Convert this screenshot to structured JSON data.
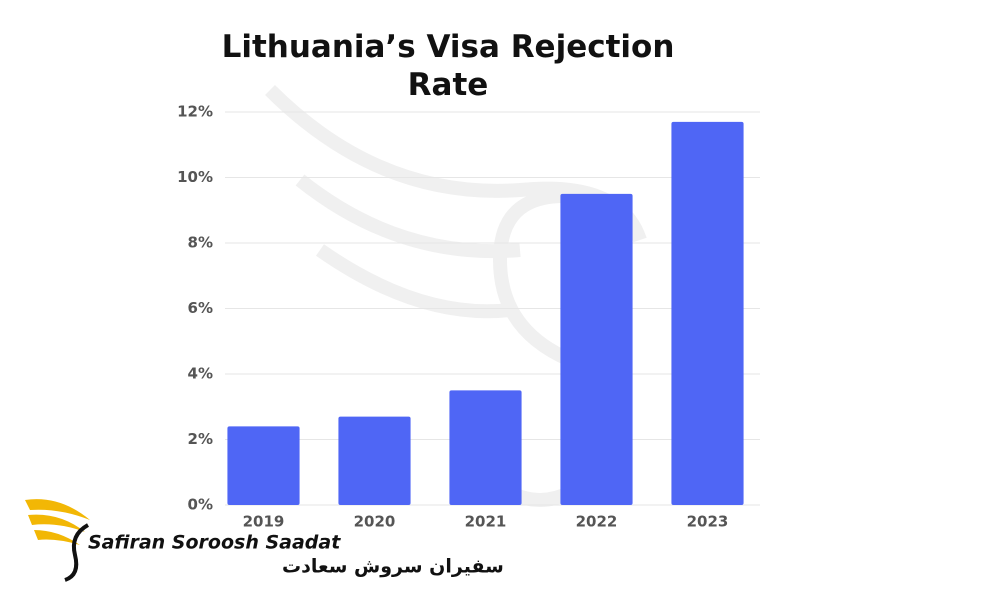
{
  "chart_data": {
    "type": "bar",
    "title": "Lithuania’s Visa Rejection Rate",
    "categories": [
      "2019",
      "2020",
      "2021",
      "2022",
      "2023"
    ],
    "values": [
      2.4,
      2.7,
      3.5,
      9.5,
      11.7
    ],
    "color": "#4f66f5",
    "ylim": [
      0,
      12
    ],
    "yticks": [
      {
        "value": 0,
        "label": "0%"
      },
      {
        "value": 2,
        "label": "2%"
      },
      {
        "value": 4,
        "label": "4%"
      },
      {
        "value": 6,
        "label": "6%"
      },
      {
        "value": 8,
        "label": "8%"
      },
      {
        "value": 10,
        "label": "10%"
      },
      {
        "value": 12,
        "label": "12%"
      }
    ],
    "grid": true
  },
  "logo": {
    "name": "Safiran Soroosh Saadat",
    "name_fa": "سفیران سروش سعادت"
  }
}
